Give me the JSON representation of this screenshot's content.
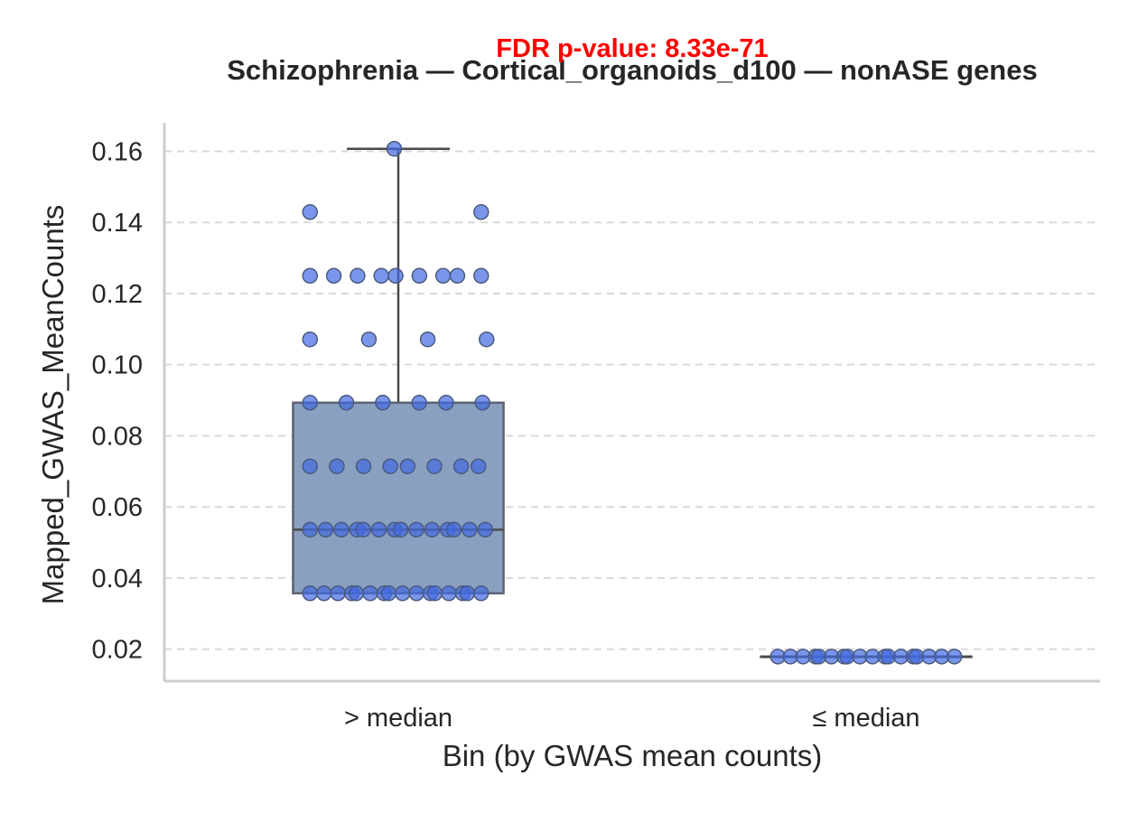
{
  "chart_data": {
    "type": "box",
    "title": "Schizophrenia — Cortical_organoids_d100 — nonASE genes",
    "annotation": "FDR p-value: 8.33e-71",
    "xlabel": "Bin (by GWAS mean counts)",
    "ylabel": "Mapped_GWAS_MeanCounts",
    "categories": [
      "> median",
      "≤ median"
    ],
    "ylim": [
      0.011,
      0.168
    ],
    "yticks": [
      0.02,
      0.04,
      0.06,
      0.08,
      0.1,
      0.12,
      0.14,
      0.16
    ],
    "ytick_labels": [
      "0.02",
      "0.04",
      "0.06",
      "0.08",
      "0.10",
      "0.12",
      "0.14",
      "0.16"
    ],
    "grid": "y dashed",
    "box_color": "#8aa0c0",
    "point_color": "#4169e1",
    "annotation_color": "#ff0000",
    "boxes": [
      {
        "category": "> median",
        "whisker_low": 0.0357,
        "q1": 0.0357,
        "median": 0.0536,
        "q3": 0.0893,
        "whisker_high": 0.1607
      },
      {
        "category": "≤ median",
        "whisker_low": 0.0179,
        "q1": 0.0179,
        "median": 0.0179,
        "q3": 0.0179,
        "whisker_high": 0.0179
      }
    ],
    "points": [
      {
        "category": "> median",
        "y": 0.1607,
        "count": 1
      },
      {
        "category": "> median",
        "y": 0.1429,
        "count": 2
      },
      {
        "category": "> median",
        "y": 0.125,
        "count": 9
      },
      {
        "category": "> median",
        "y": 0.1071,
        "count": 4
      },
      {
        "category": "> median",
        "y": 0.0893,
        "count": 6
      },
      {
        "category": "> median",
        "y": 0.0714,
        "count": 8
      },
      {
        "category": "> median",
        "y": 0.0536,
        "count": 14
      },
      {
        "category": "> median",
        "y": 0.0357,
        "count": 16
      },
      {
        "category": "≤ median",
        "y": 0.0179,
        "count": 18
      }
    ]
  }
}
